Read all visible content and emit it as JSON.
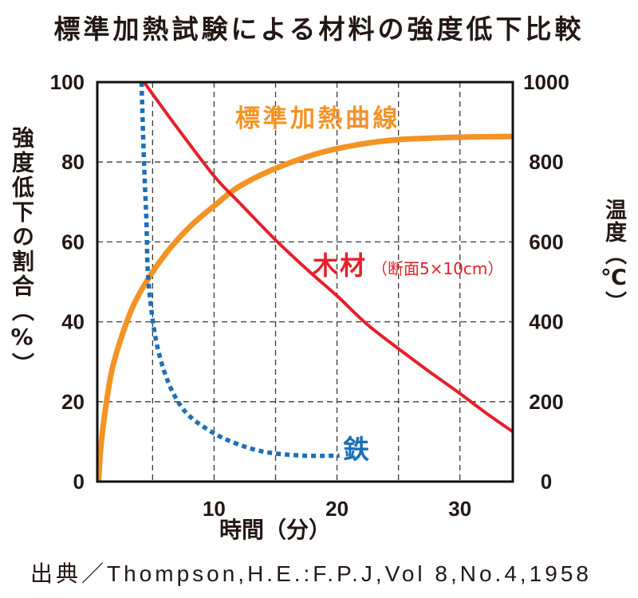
{
  "source": "出典／Thompson,H.E.:F.P.J,Vol 8,No.4,1958",
  "colors": {
    "text": "#231815",
    "frame": "#111111",
    "grid": "#3a3a3a"
  },
  "chart_data": {
    "type": "line",
    "title": "標準加熱試験による材料の強度低下比較",
    "xlabel": "時間（分）",
    "ylabel": "強度低下の割合（%）",
    "y2label": "温度（℃）",
    "xlim": [
      0.5,
      34.3
    ],
    "ylim": [
      0,
      100
    ],
    "y2lim": [
      0,
      1000
    ],
    "xticks": [
      10,
      20,
      30
    ],
    "yticks": [
      0,
      20,
      40,
      60,
      80,
      100
    ],
    "y2ticks": [
      0,
      200,
      400,
      600,
      800,
      1000
    ],
    "x_gridlines": [
      5,
      10,
      15,
      20,
      25,
      30
    ],
    "y_gridlines": [
      20,
      40,
      60,
      80
    ],
    "grid": true,
    "series": [
      {
        "name": "木材",
        "note": "（断面5×10cm）",
        "color": "#E4202A",
        "x": [
          4.3,
          6.9,
          10,
          12,
          15,
          17.6,
          20,
          22.4,
          24.9,
          27.3,
          29.8,
          32.2,
          34.3
        ],
        "y": [
          100,
          89,
          76.5,
          70,
          60.5,
          53,
          46.5,
          39.5,
          33.5,
          28,
          22.5,
          17,
          12.5
        ]
      },
      {
        "name": "鉄",
        "color": "#1D6FB6",
        "x": [
          4.1,
          4.3,
          4.5,
          4.6,
          4.9,
          5.3,
          5.9,
          6.7,
          7.8,
          9.5,
          11.4,
          14,
          17.2,
          20.2
        ],
        "y": [
          100,
          80,
          65,
          53,
          43,
          35,
          28,
          22,
          17,
          13,
          10,
          7.5,
          6.5,
          6.5
        ]
      }
    ],
    "y2_series": [
      {
        "name": "標準加熱曲線",
        "color": "#F39325",
        "x": [
          0.6,
          0.8,
          1.2,
          1.7,
          2.5,
          3.5,
          4.9,
          6.5,
          8.2,
          10,
          12,
          15,
          18.5,
          21.8,
          25,
          29.8,
          34.3
        ],
        "y": [
          0,
          90,
          190,
          280,
          365,
          445,
          520,
          587,
          643,
          690,
          738,
          784,
          822,
          844,
          856,
          862,
          864
        ]
      }
    ]
  }
}
